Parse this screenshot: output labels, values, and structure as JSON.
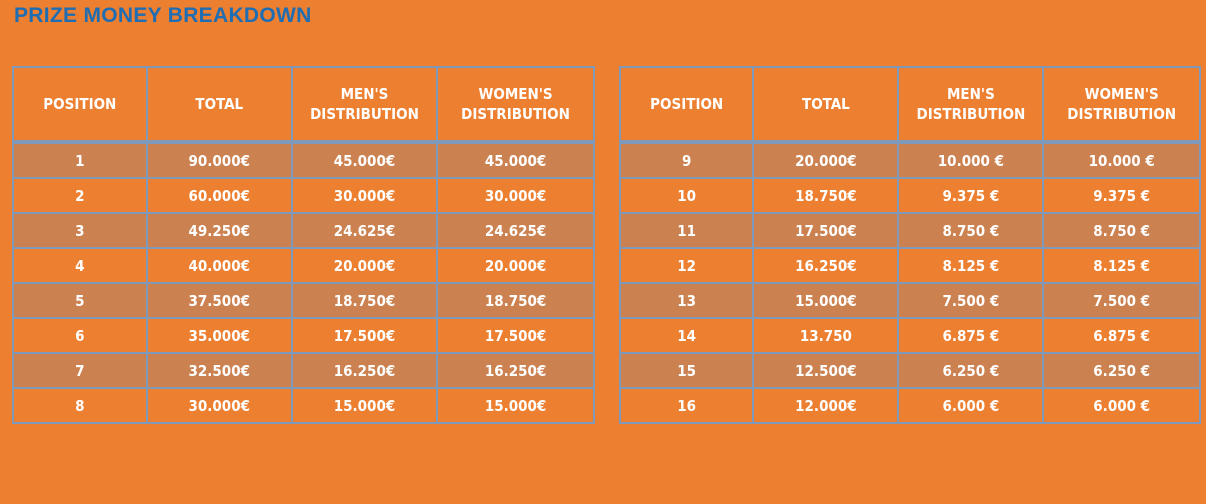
{
  "title": "PRIZE MONEY BREAKDOWN",
  "headers": {
    "position": "POSITION",
    "total": "TOTAL",
    "men": "MEN'S DISTRIBUTION",
    "women": "WOMEN'S DISTRIBUTION"
  },
  "left_rows": [
    {
      "position": "1",
      "total": "90.000€",
      "men": "45.000€",
      "women": "45.000€"
    },
    {
      "position": "2",
      "total": "60.000€",
      "men": "30.000€",
      "women": "30.000€"
    },
    {
      "position": "3",
      "total": "49.250€",
      "men": "24.625€",
      "women": "24.625€"
    },
    {
      "position": "4",
      "total": "40.000€",
      "men": "20.000€",
      "women": "20.000€"
    },
    {
      "position": "5",
      "total": "37.500€",
      "men": "18.750€",
      "women": "18.750€"
    },
    {
      "position": "6",
      "total": "35.000€",
      "men": "17.500€",
      "women": "17.500€"
    },
    {
      "position": "7",
      "total": "32.500€",
      "men": "16.250€",
      "women": "16.250€"
    },
    {
      "position": "8",
      "total": "30.000€",
      "men": "15.000€",
      "women": "15.000€"
    }
  ],
  "right_rows": [
    {
      "position": "9",
      "total": "20.000€",
      "men": "10.000 €",
      "women": "10.000 €"
    },
    {
      "position": "10",
      "total": "18.750€",
      "men": "9.375 €",
      "women": "9.375 €"
    },
    {
      "position": "11",
      "total": "17.500€",
      "men": "8.750 €",
      "women": "8.750 €"
    },
    {
      "position": "12",
      "total": "16.250€",
      "men": "8.125 €",
      "women": "8.125 €"
    },
    {
      "position": "13",
      "total": "15.000€",
      "men": "7.500 €",
      "women": "7.500 €"
    },
    {
      "position": "14",
      "total": "13.750",
      "men": "6.875 €",
      "women": "6.875 €"
    },
    {
      "position": "15",
      "total": "12.500€",
      "men": "6.250 €",
      "women": "6.250 €"
    },
    {
      "position": "16",
      "total": "12.000€",
      "men": "6.000 €",
      "women": "6.000 €"
    }
  ],
  "colors": {
    "background": "#ec7f30",
    "alt_row": "#cc8250",
    "title": "#1f6db3",
    "border": "#7f99bb",
    "text": "#ffffff"
  }
}
